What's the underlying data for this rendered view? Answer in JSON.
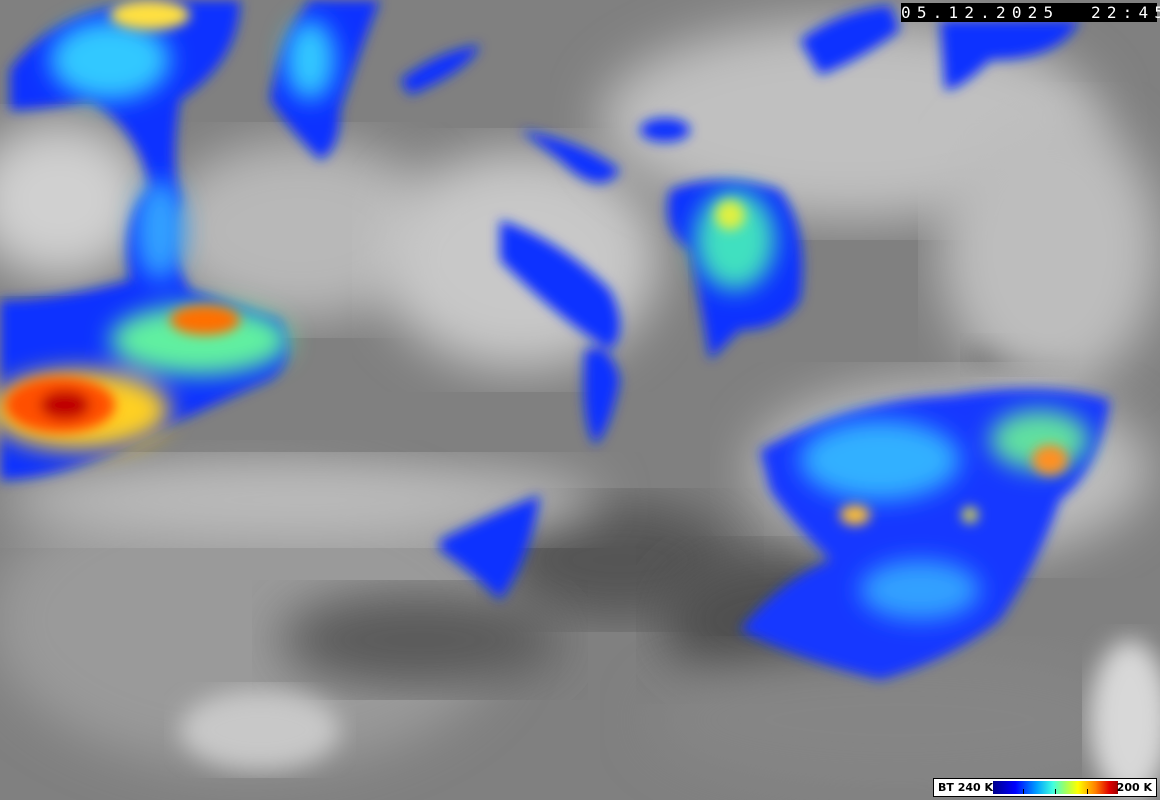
{
  "image": {
    "type": "infrared satellite image",
    "timestamp": "05.12.2025  22:45",
    "colors": {
      "background_gray": "#7a7a7a",
      "cold_cloud_white": "#e6e6e6",
      "dark_surface": "#4a4a4a"
    }
  },
  "legend": {
    "low_label": "BT 240 K",
    "high_label": "200 K",
    "colorscale": [
      "#00008c",
      "#0000ff",
      "#00a0ff",
      "#40ffe0",
      "#a0ff60",
      "#ffff00",
      "#ff8000",
      "#e00000",
      "#a00000"
    ]
  }
}
